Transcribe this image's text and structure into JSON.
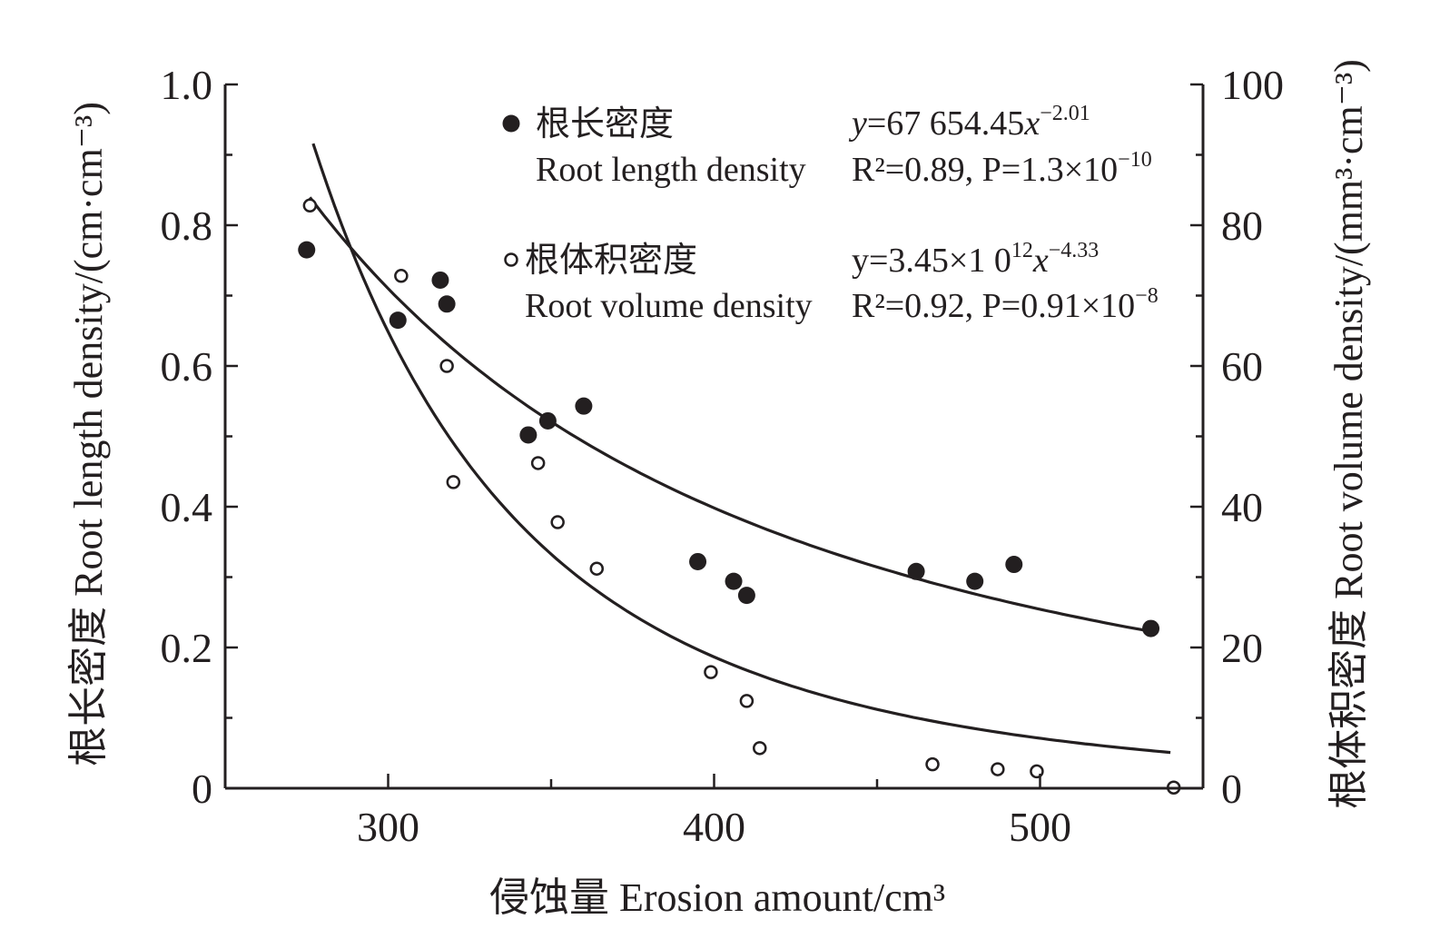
{
  "chart_data": {
    "type": "scatter",
    "title": "",
    "xlabel": "侵蚀量 Erosion amount/cm³",
    "ylabel_left": "根长密度 Root length density/(cm·cm⁻³)",
    "ylabel_right": "根体积密度 Root volume density/(mm³·cm⁻³)",
    "xlim": [
      250,
      550
    ],
    "ylim_left": [
      0,
      1.0
    ],
    "ylim_right": [
      0,
      100
    ],
    "x_ticks": [
      300,
      400,
      500
    ],
    "x_tick_labels": [
      "300",
      "400",
      "500"
    ],
    "y_left_ticks": [
      0,
      0.2,
      0.4,
      0.6,
      0.8,
      1.0
    ],
    "y_left_tick_labels": [
      "0",
      "0.2",
      "0.4",
      "0.6",
      "0.8",
      "1.0"
    ],
    "y_right_ticks": [
      0,
      20,
      40,
      60,
      80,
      100
    ],
    "y_right_tick_labels": [
      "0",
      "20",
      "40",
      "60",
      "80",
      "100"
    ],
    "grid": false,
    "legend_position": "top-center",
    "series": [
      {
        "name": "根长密度 Root length density",
        "label_cn": "根长密度",
        "label_en": "Root length density",
        "marker": "filled-circle",
        "axis": "left",
        "equation_main": "y=67 654.45x",
        "equation_exp": "−2.01",
        "stats": "R²=0.89, P=1.3×10",
        "stats_exp": "−10",
        "fit": {
          "a": 67654.45,
          "b": -2.01,
          "x_range": [
            276,
            535
          ]
        },
        "points": [
          {
            "x": 275,
            "y": 0.765
          },
          {
            "x": 303,
            "y": 0.665
          },
          {
            "x": 316,
            "y": 0.722
          },
          {
            "x": 318,
            "y": 0.688
          },
          {
            "x": 343,
            "y": 0.502
          },
          {
            "x": 349,
            "y": 0.522
          },
          {
            "x": 360,
            "y": 0.543
          },
          {
            "x": 395,
            "y": 0.322
          },
          {
            "x": 406,
            "y": 0.294
          },
          {
            "x": 410,
            "y": 0.274
          },
          {
            "x": 462,
            "y": 0.308
          },
          {
            "x": 480,
            "y": 0.294
          },
          {
            "x": 492,
            "y": 0.318
          },
          {
            "x": 534,
            "y": 0.227
          }
        ]
      },
      {
        "name": "根体积密度 Root volume density",
        "label_cn": "根体积密度",
        "label_en": "Root volume density",
        "marker": "open-circle",
        "axis": "right",
        "equation_main": "y=3.45×1 0",
        "equation_sup1": "12",
        "equation_x": "x",
        "equation_exp": "−4.33",
        "stats": "R²=0.92, P=0.91×10",
        "stats_exp": "−8",
        "fit": {
          "a": 3450000000000.0,
          "b": -4.33,
          "x_range": [
            277,
            540
          ]
        },
        "points": [
          {
            "x": 276,
            "y": 82.8
          },
          {
            "x": 304,
            "y": 72.8
          },
          {
            "x": 318,
            "y": 60.0
          },
          {
            "x": 320,
            "y": 43.5
          },
          {
            "x": 346,
            "y": 46.2
          },
          {
            "x": 352,
            "y": 37.8
          },
          {
            "x": 364,
            "y": 31.2
          },
          {
            "x": 399,
            "y": 16.5
          },
          {
            "x": 410,
            "y": 12.4
          },
          {
            "x": 414,
            "y": 5.7
          },
          {
            "x": 467,
            "y": 3.4
          },
          {
            "x": 487,
            "y": 2.7
          },
          {
            "x": 499,
            "y": 2.4
          },
          {
            "x": 541,
            "y": 0.1
          }
        ]
      }
    ]
  }
}
